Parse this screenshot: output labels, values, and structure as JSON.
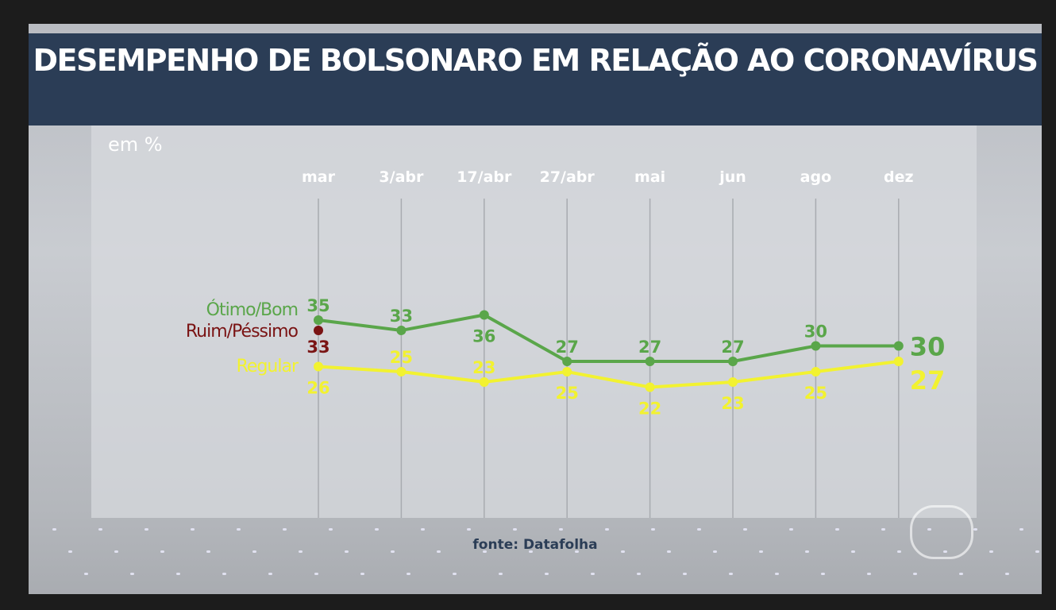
{
  "title": "DESEMPENHO DE BOLSONARO EM RELAÇÃO AO CORONAVÍRUS",
  "unit_label": "em %",
  "source": "fonte: Datafolha",
  "chart_data": {
    "type": "line",
    "title": "DESEMPENHO DE BOLSONARO EM RELAÇÃO AO CORONAVÍRUS",
    "ylabel": "em %",
    "categories": [
      "mar",
      "3/abr",
      "17/abr",
      "27/abr",
      "mai",
      "jun",
      "ago",
      "dez"
    ],
    "series": [
      {
        "name": "Ótimo/Bom",
        "color": "#5aa64a",
        "values": [
          35,
          33,
          36,
          27,
          27,
          27,
          30,
          30
        ]
      },
      {
        "name": "Ruim/Péssimo",
        "color": "#7a1414",
        "values": [
          33,
          null,
          null,
          null,
          null,
          null,
          null,
          null
        ]
      },
      {
        "name": "Regular",
        "color": "#f2f230",
        "values": [
          26,
          25,
          23,
          25,
          22,
          23,
          25,
          27
        ]
      }
    ],
    "grid": true,
    "legend": "left"
  }
}
